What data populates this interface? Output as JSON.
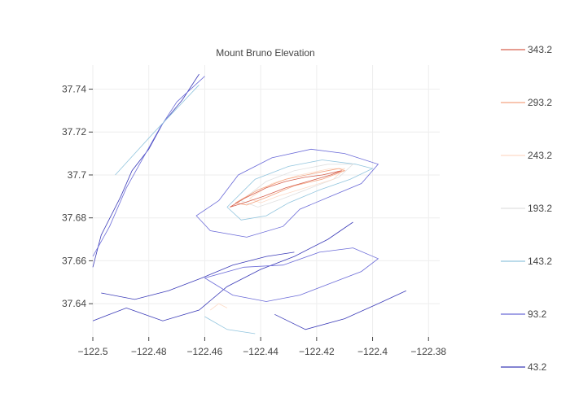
{
  "chart_data": {
    "type": "contour",
    "title": "Mount Bruno Elevation",
    "xlabel": "",
    "ylabel": "",
    "xlim": [
      -122.5,
      -122.376
    ],
    "ylim": [
      37.6245,
      37.7512
    ],
    "x_ticks": [
      -122.5,
      -122.48,
      -122.46,
      -122.44,
      -122.42,
      -122.4,
      -122.38
    ],
    "x_tick_labels": [
      "−122.5",
      "−122.48",
      "−122.46",
      "−122.44",
      "−122.42",
      "−122.4",
      "−122.38"
    ],
    "y_ticks": [
      37.64,
      37.66,
      37.68,
      37.7,
      37.72,
      37.74
    ],
    "y_tick_labels": [
      "37.64",
      "37.66",
      "37.68",
      "37.7",
      "37.72",
      "37.74"
    ],
    "grid": true,
    "legend_position": "right",
    "legend": [
      {
        "label": "343.2",
        "color": "#d6604d"
      },
      {
        "label": "293.2",
        "color": "#f4a582"
      },
      {
        "label": "243.2",
        "color": "#fddbc7"
      },
      {
        "label": "193.2",
        "color": "#e0e0e0"
      },
      {
        "label": "143.2",
        "color": "#92c5de"
      },
      {
        "label": "93.2",
        "color": "#6b6bd8"
      },
      {
        "label": "43.2",
        "color": "#3b3bb8"
      }
    ],
    "contours": [
      {
        "level": 43.2,
        "color": "#3b3bb8",
        "lines": [
          [
            [
              -122.5,
              37.657
            ],
            [
              -122.497,
              37.672
            ],
            [
              -122.49,
              37.69
            ],
            [
              -122.486,
              37.702
            ],
            [
              -122.48,
              37.712
            ],
            [
              -122.475,
              37.724
            ],
            [
              -122.468,
              37.735
            ],
            [
              -122.462,
              37.747
            ]
          ],
          [
            [
              -122.5,
              37.632
            ],
            [
              -122.488,
              37.638
            ],
            [
              -122.475,
              37.632
            ],
            [
              -122.462,
              37.637
            ],
            [
              -122.452,
              37.648
            ],
            [
              -122.44,
              37.656
            ],
            [
              -122.428,
              37.662
            ],
            [
              -122.416,
              37.67
            ],
            [
              -122.407,
              37.678
            ]
          ],
          [
            [
              -122.435,
              37.635
            ],
            [
              -122.424,
              37.628
            ],
            [
              -122.41,
              37.633
            ],
            [
              -122.398,
              37.64
            ],
            [
              -122.388,
              37.646
            ]
          ],
          [
            [
              -122.497,
              37.645
            ],
            [
              -122.485,
              37.642
            ],
            [
              -122.473,
              37.646
            ],
            [
              -122.461,
              37.652
            ],
            [
              -122.45,
              37.658
            ],
            [
              -122.438,
              37.662
            ],
            [
              -122.428,
              37.664
            ]
          ]
        ]
      },
      {
        "level": 93.2,
        "color": "#6b6bd8",
        "lines": [
          [
            [
              -122.455,
              37.688
            ],
            [
              -122.448,
              37.7
            ],
            [
              -122.436,
              37.708
            ],
            [
              -122.422,
              37.712
            ],
            [
              -122.41,
              37.71
            ],
            [
              -122.398,
              37.705
            ],
            [
              -122.404,
              37.696
            ],
            [
              -122.415,
              37.69
            ],
            [
              -122.426,
              37.684
            ],
            [
              -122.432,
              37.676
            ],
            [
              -122.445,
              37.671
            ],
            [
              -122.458,
              37.674
            ],
            [
              -122.463,
              37.681
            ],
            [
              -122.455,
              37.688
            ]
          ],
          [
            [
              -122.5,
              37.662
            ],
            [
              -122.494,
              37.676
            ],
            [
              -122.488,
              37.694
            ],
            [
              -122.482,
              37.708
            ],
            [
              -122.476,
              37.722
            ],
            [
              -122.47,
              37.734
            ],
            [
              -122.46,
              37.746
            ]
          ],
          [
            [
              -122.46,
              37.652
            ],
            [
              -122.45,
              37.644
            ],
            [
              -122.438,
              37.641
            ],
            [
              -122.426,
              37.644
            ],
            [
              -122.414,
              37.65
            ],
            [
              -122.404,
              37.655
            ],
            [
              -122.398,
              37.661
            ],
            [
              -122.407,
              37.666
            ],
            [
              -122.419,
              37.664
            ],
            [
              -122.432,
              37.658
            ],
            [
              -122.446,
              37.657
            ],
            [
              -122.46,
              37.652
            ]
          ]
        ]
      },
      {
        "level": 143.2,
        "color": "#92c5de",
        "lines": [
          [
            [
              -122.452,
              37.685
            ],
            [
              -122.442,
              37.698
            ],
            [
              -122.43,
              37.704
            ],
            [
              -122.418,
              37.707
            ],
            [
              -122.406,
              37.705
            ],
            [
              -122.4,
              37.703
            ],
            [
              -122.408,
              37.698
            ],
            [
              -122.419,
              37.693
            ],
            [
              -122.43,
              37.687
            ],
            [
              -122.438,
              37.681
            ],
            [
              -122.447,
              37.679
            ],
            [
              -122.452,
              37.685
            ]
          ],
          [
            [
              -122.492,
              37.7
            ],
            [
              -122.485,
              37.71
            ],
            [
              -122.478,
              37.72
            ],
            [
              -122.47,
              37.731
            ],
            [
              -122.462,
              37.742
            ]
          ],
          [
            [
              -122.46,
              37.634
            ],
            [
              -122.452,
              37.628
            ],
            [
              -122.442,
              37.626
            ]
          ]
        ]
      },
      {
        "level": 193.2,
        "color": "#e0e0e0",
        "lines": [
          [
            [
              -122.447,
              37.688
            ],
            [
              -122.438,
              37.697
            ],
            [
              -122.428,
              37.702
            ],
            [
              -122.416,
              37.705
            ],
            [
              -122.407,
              37.705
            ],
            [
              -122.412,
              37.699
            ],
            [
              -122.422,
              37.694
            ],
            [
              -122.432,
              37.689
            ],
            [
              -122.441,
              37.685
            ],
            [
              -122.447,
              37.688
            ]
          ]
        ]
      },
      {
        "level": 243.2,
        "color": "#fddbc7",
        "lines": [
          [
            [
              -122.444,
              37.689
            ],
            [
              -122.436,
              37.696
            ],
            [
              -122.426,
              37.7
            ],
            [
              -122.415,
              37.703
            ],
            [
              -122.41,
              37.703
            ],
            [
              -122.414,
              37.698
            ],
            [
              -122.424,
              37.694
            ],
            [
              -122.434,
              37.69
            ],
            [
              -122.44,
              37.687
            ],
            [
              -122.444,
              37.689
            ]
          ],
          [
            [
              -122.458,
              37.637
            ],
            [
              -122.455,
              37.64
            ],
            [
              -122.452,
              37.638
            ]
          ]
        ]
      },
      {
        "level": 293.2,
        "color": "#f4a582",
        "lines": [
          [
            [
              -122.449,
              37.687
            ],
            [
              -122.441,
              37.693
            ],
            [
              -122.431,
              37.698
            ],
            [
              -122.42,
              37.701
            ],
            [
              -122.412,
              37.703
            ],
            [
              -122.41,
              37.702
            ],
            [
              -122.418,
              37.698
            ],
            [
              -122.428,
              37.695
            ],
            [
              -122.437,
              37.69
            ],
            [
              -122.445,
              37.686
            ],
            [
              -122.449,
              37.687
            ]
          ]
        ]
      },
      {
        "level": 343.2,
        "color": "#d6604d",
        "lines": [
          [
            [
              -122.451,
              37.685
            ],
            [
              -122.446,
              37.689
            ],
            [
              -122.438,
              37.694
            ],
            [
              -122.431,
              37.697
            ],
            [
              -122.424,
              37.699
            ],
            [
              -122.418,
              37.7
            ],
            [
              -122.411,
              37.702
            ],
            [
              -122.415,
              37.7
            ],
            [
              -122.423,
              37.697
            ],
            [
              -122.431,
              37.694
            ],
            [
              -122.439,
              37.69
            ],
            [
              -122.446,
              37.687
            ],
            [
              -122.451,
              37.685
            ]
          ]
        ]
      }
    ]
  }
}
